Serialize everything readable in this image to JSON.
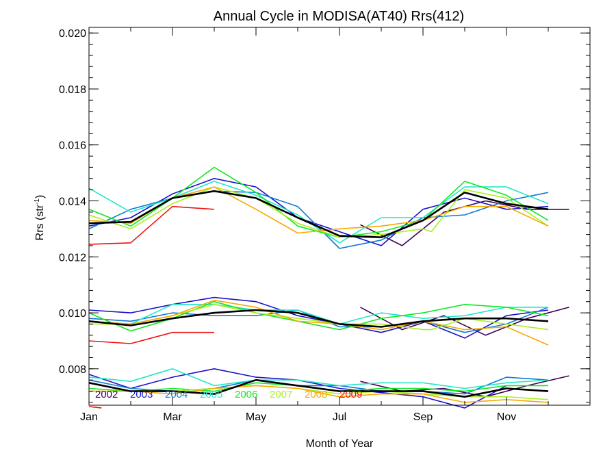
{
  "chart_data": {
    "type": "line",
    "title": "Annual Cycle in MODISA(AT40) Rrs(412)",
    "xlabel": "Month of Year",
    "ylabel_main": "Rrs (str",
    "ylabel_sup": "-1",
    "ylabel_close": ")",
    "xlim": [
      1,
      13
    ],
    "ylim": [
      0.0067,
      0.0202
    ],
    "x_ticks": [
      {
        "value": 1,
        "label": "Jan"
      },
      {
        "value": 3,
        "label": "Mar"
      },
      {
        "value": 5,
        "label": "May"
      },
      {
        "value": 7,
        "label": "Jul"
      },
      {
        "value": 9,
        "label": "Sep"
      },
      {
        "value": 11,
        "label": "Nov"
      }
    ],
    "y_ticks": [
      {
        "value": 0.008,
        "label": "0.008"
      },
      {
        "value": 0.01,
        "label": "0.010"
      },
      {
        "value": 0.012,
        "label": "0.012"
      },
      {
        "value": 0.014,
        "label": "0.014"
      },
      {
        "value": 0.016,
        "label": "0.016"
      },
      {
        "value": 0.018,
        "label": "0.018"
      },
      {
        "value": 0.02,
        "label": "0.020"
      }
    ],
    "grid": false,
    "legend_placement": "bottom-left",
    "series": [
      {
        "name": "2002",
        "color": "#3d0054",
        "groups": [
          {
            "x": [
              7.5,
              8.5,
              9.5,
              10.5,
              11.5,
              12.5
            ],
            "y": [
              0.01315,
              0.0124,
              0.0136,
              0.014,
              0.0137,
              0.0137
            ]
          },
          {
            "x": [
              7.5,
              8.5,
              9.5,
              10.5,
              11.5,
              12.5
            ],
            "y": [
              0.0102,
              0.0094,
              0.0099,
              0.0092,
              0.0098,
              0.0102
            ]
          },
          {
            "x": [
              7.5,
              8.5,
              9.5,
              10.5,
              11.5,
              12.5
            ],
            "y": [
              0.00755,
              0.0072,
              0.0073,
              0.007,
              0.0074,
              0.00775
            ]
          }
        ]
      },
      {
        "name": "2003",
        "color": "#1a10c8",
        "groups": [
          {
            "x": [
              1.0,
              2.0,
              3.0,
              4.0,
              5.0,
              6.0,
              7.0,
              8.0,
              9.0,
              10.0,
              11.0,
              12.0
            ],
            "y": [
              0.0131,
              0.0134,
              0.01425,
              0.0148,
              0.0145,
              0.0134,
              0.0129,
              0.0124,
              0.0137,
              0.0141,
              0.0137,
              0.0138
            ]
          },
          {
            "x": [
              1.0,
              2.0,
              3.0,
              4.0,
              5.0,
              6.0,
              7.0,
              8.0,
              9.0,
              10.0,
              11.0,
              12.0
            ],
            "y": [
              0.0101,
              0.01,
              0.0103,
              0.01055,
              0.0104,
              0.0099,
              0.0096,
              0.0093,
              0.0097,
              0.0091,
              0.0099,
              0.0101
            ]
          },
          {
            "x": [
              1.0,
              2.0,
              3.0,
              4.0,
              5.0,
              6.0,
              7.0,
              8.0,
              9.0,
              10.0,
              11.0
            ],
            "y": [
              0.0078,
              0.0073,
              0.0077,
              0.008,
              0.0077,
              0.0076,
              0.0073,
              0.00715,
              0.007,
              0.0066,
              0.0074
            ]
          }
        ]
      },
      {
        "name": "2004",
        "color": "#1078d8",
        "groups": [
          {
            "x": [
              1.0,
              2.0,
              3.0,
              4.0,
              5.0,
              6.0,
              7.0,
              8.0,
              9.0,
              10.0,
              11.0,
              12.0
            ],
            "y": [
              0.013,
              0.0137,
              0.0141,
              0.01435,
              0.0143,
              0.0138,
              0.0123,
              0.0126,
              0.0134,
              0.0135,
              0.014,
              0.0143
            ]
          },
          {
            "x": [
              1.0,
              2.0,
              3.0,
              4.0,
              5.0,
              6.0,
              7.0,
              8.0,
              9.0,
              10.0,
              11.0,
              12.0
            ],
            "y": [
              0.0098,
              0.0097,
              0.01,
              0.0099,
              0.0099,
              0.0101,
              0.0095,
              0.0095,
              0.0097,
              0.0093,
              0.0096,
              0.0102
            ]
          },
          {
            "x": [
              1.0,
              2.0,
              3.0,
              4.0,
              5.0,
              6.0,
              7.0,
              8.0,
              9.0,
              10.0,
              11.0,
              12.0
            ],
            "y": [
              0.0076,
              0.0073,
              0.0072,
              0.0073,
              0.0076,
              0.0074,
              0.0074,
              0.0072,
              0.0072,
              0.0071,
              0.0077,
              0.0076
            ]
          }
        ]
      },
      {
        "name": "2005",
        "color": "#20e8c8",
        "groups": [
          {
            "x": [
              1.0,
              2.0,
              3.0,
              4.0,
              5.0,
              6.0,
              7.0,
              8.0,
              9.0,
              10.0,
              11.0,
              12.0
            ],
            "y": [
              0.01445,
              0.0136,
              0.0141,
              0.0147,
              0.0142,
              0.0135,
              0.0125,
              0.0134,
              0.0134,
              0.0145,
              0.0145,
              0.0139
            ]
          },
          {
            "x": [
              1.0,
              2.0,
              3.0,
              4.0,
              5.0,
              6.0,
              7.0,
              8.0,
              9.0,
              10.0,
              11.0,
              12.0
            ],
            "y": [
              0.0097,
              0.0096,
              0.0103,
              0.0103,
              0.0101,
              0.0101,
              0.0096,
              0.01,
              0.0098,
              0.0099,
              0.0102,
              0.0102
            ]
          },
          {
            "x": [
              1.0,
              2.0,
              3.0,
              4.0,
              5.0,
              6.0,
              7.0,
              8.0,
              9.0,
              10.0,
              11.0,
              12.0
            ],
            "y": [
              0.0077,
              0.00755,
              0.008,
              0.0074,
              0.0076,
              0.0076,
              0.0074,
              0.0075,
              0.0075,
              0.0073,
              0.0075,
              0.0076
            ]
          }
        ]
      },
      {
        "name": "2006",
        "color": "#10e820",
        "groups": [
          {
            "x": [
              1.0,
              2.0,
              3.0,
              4.0,
              5.0,
              6.0,
              7.0,
              8.0,
              9.0,
              10.0,
              11.0,
              12.0
            ],
            "y": [
              0.0137,
              0.0131,
              0.0141,
              0.0152,
              0.0143,
              0.0131,
              0.0127,
              0.0129,
              0.0133,
              0.0147,
              0.0142,
              0.0133
            ]
          },
          {
            "x": [
              1.0,
              2.0,
              3.0,
              4.0,
              5.0,
              6.0,
              7.0,
              8.0,
              9.0,
              10.0,
              11.0,
              12.0
            ],
            "y": [
              0.01,
              0.00935,
              0.0098,
              0.0104,
              0.01,
              0.0097,
              0.0094,
              0.0098,
              0.01,
              0.0103,
              0.0102,
              0.0099
            ]
          },
          {
            "x": [
              1.0,
              2.0,
              3.0,
              4.0,
              5.0,
              6.0,
              7.0,
              8.0,
              9.0,
              10.0,
              11.0,
              12.0
            ],
            "y": [
              0.0073,
              0.0072,
              0.0073,
              0.0072,
              0.0075,
              0.0074,
              0.0072,
              0.0073,
              0.0073,
              0.0072,
              0.0074,
              0.0074
            ]
          }
        ]
      },
      {
        "name": "2007",
        "color": "#a8f020",
        "groups": [
          {
            "x": [
              1.0,
              2.0,
              3.0,
              4.0,
              5.0,
              6.0,
              7.0,
              8.0,
              9.0,
              9.2,
              10.0,
              11.0,
              12.0
            ],
            "y": [
              0.0135,
              0.013,
              0.0139,
              0.0145,
              0.0141,
              0.0132,
              0.0127,
              0.0128,
              0.013,
              0.0129,
              0.0144,
              0.0141,
              0.0131
            ]
          },
          {
            "x": [
              1.0,
              2.0,
              3.0,
              4.0,
              5.0,
              6.0,
              7.0,
              8.0,
              9.0,
              9.2,
              10.0,
              11.0,
              12.0
            ],
            "y": [
              0.0096,
              0.0096,
              0.0099,
              0.0103,
              0.01,
              0.0098,
              0.0096,
              0.0096,
              0.0094,
              0.0094,
              0.0098,
              0.0096,
              0.0094
            ]
          },
          {
            "x": [
              1.0,
              2.0,
              3.0,
              4.0,
              5.0,
              6.0,
              7.0,
              8.0,
              9.0,
              10.0,
              11.0,
              12.0
            ],
            "y": [
              0.0072,
              0.0072,
              0.0072,
              0.0073,
              0.0074,
              0.0073,
              0.0071,
              0.0072,
              0.0071,
              0.007,
              0.007,
              0.0069
            ]
          }
        ]
      },
      {
        "name": "2008",
        "color": "#f8a800",
        "groups": [
          {
            "x": [
              1.0,
              2.0,
              3.0,
              4.0,
              5.0,
              6.0,
              7.0,
              8.0,
              9.0,
              10.0,
              11.0,
              12.0
            ],
            "y": [
              0.0133,
              0.0132,
              0.0141,
              0.0145,
              0.0137,
              0.01285,
              0.013,
              0.0131,
              0.0133,
              0.0138,
              0.0138,
              0.0131
            ]
          },
          {
            "x": [
              1.0,
              2.0,
              3.0,
              4.0,
              5.0,
              6.0,
              7.0,
              8.0,
              9.0,
              10.0,
              11.0,
              12.0
            ],
            "y": [
              0.0097,
              0.0096,
              0.0099,
              0.01045,
              0.0102,
              0.0097,
              0.0096,
              0.0094,
              0.0097,
              0.0094,
              0.0095,
              0.00885
            ]
          },
          {
            "x": [
              1.0,
              2.0,
              3.0,
              4.0,
              5.0,
              6.0,
              7.0,
              8.0,
              9.0,
              10.0,
              11.0,
              12.0
            ],
            "y": [
              0.0072,
              0.0072,
              0.0071,
              0.0073,
              0.0074,
              0.0073,
              0.007,
              0.0071,
              0.0071,
              0.0068,
              0.0069,
              0.0068
            ]
          }
        ]
      },
      {
        "name": "2009",
        "color": "#f01010",
        "groups": [
          {
            "x": [
              1.0,
              2.0,
              3.0,
              4.0
            ],
            "y": [
              0.01245,
              0.0125,
              0.0138,
              0.0137
            ]
          },
          {
            "x": [
              1.0,
              2.0,
              3.0,
              4.0
            ],
            "y": [
              0.009,
              0.0089,
              0.0093,
              0.0093
            ]
          },
          {
            "x": [
              1.0,
              1.3
            ],
            "y": [
              0.00665,
              0.0066
            ]
          }
        ]
      },
      {
        "name": "",
        "color": "#000000",
        "width": 2.6,
        "groups": [
          {
            "x": [
              1.0,
              2.0,
              3.0,
              4.0,
              5.0,
              6.0,
              7.0,
              8.0,
              9.0,
              10.0,
              11.0,
              12.0
            ],
            "y": [
              0.0132,
              0.01325,
              0.0141,
              0.01435,
              0.0141,
              0.0134,
              0.01275,
              0.0127,
              0.0133,
              0.0143,
              0.0139,
              0.0137
            ]
          },
          {
            "x": [
              1.0,
              2.0,
              3.0,
              4.0,
              5.0,
              6.0,
              7.0,
              8.0,
              9.0,
              10.0,
              11.0,
              12.0
            ],
            "y": [
              0.0097,
              0.00955,
              0.0098,
              0.01,
              0.0101,
              0.01,
              0.0096,
              0.0095,
              0.0097,
              0.0098,
              0.0098,
              0.0097
            ]
          },
          {
            "x": [
              1.0,
              2.0,
              3.0,
              4.0,
              5.0,
              6.0,
              7.0,
              8.0,
              9.0,
              10.0,
              11.0,
              12.0
            ],
            "y": [
              0.0075,
              0.0072,
              0.0072,
              0.0071,
              0.0076,
              0.0074,
              0.0072,
              0.0072,
              0.0072,
              0.007,
              0.0073,
              0.0072
            ]
          }
        ]
      }
    ]
  }
}
